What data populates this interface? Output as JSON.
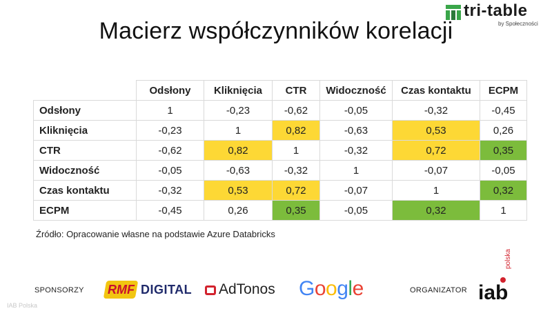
{
  "title": "Macierz współczynników korelacji",
  "logo": {
    "name": "tri-table",
    "sub": "by Społeczności"
  },
  "matrix": {
    "columns": [
      "Odsłony",
      "Kliknięcia",
      "CTR",
      "Widoczność",
      "Czas kontaktu",
      "ECPM"
    ],
    "rows": [
      {
        "label": "Odsłony",
        "values": [
          "1",
          "-0,23",
          "-0,62",
          "-0,05",
          "-0,32",
          "-0,45"
        ],
        "highlight": [
          "",
          "",
          "",
          "",
          "",
          ""
        ]
      },
      {
        "label": "Kliknięcia",
        "values": [
          "-0,23",
          "1",
          "0,82",
          "-0,63",
          "0,53",
          "0,26"
        ],
        "highlight": [
          "",
          "",
          "yellow",
          "",
          "yellow",
          ""
        ]
      },
      {
        "label": "CTR",
        "values": [
          "-0,62",
          "0,82",
          "1",
          "-0,32",
          "0,72",
          "0,35"
        ],
        "highlight": [
          "",
          "yellow",
          "",
          "",
          "yellow",
          "green"
        ]
      },
      {
        "label": "Widoczność",
        "values": [
          "-0,05",
          "-0,63",
          "-0,32",
          "1",
          "-0,07",
          "-0,05"
        ],
        "highlight": [
          "",
          "",
          "",
          "",
          "",
          ""
        ]
      },
      {
        "label": "Czas kontaktu",
        "values": [
          "-0,32",
          "0,53",
          "0,72",
          "-0,07",
          "1",
          "0,32"
        ],
        "highlight": [
          "",
          "yellow",
          "yellow",
          "",
          "",
          "green"
        ]
      },
      {
        "label": "ECPM",
        "values": [
          "-0,45",
          "0,26",
          "0,35",
          "-0,05",
          "0,32",
          "1"
        ],
        "highlight": [
          "",
          "",
          "green",
          "",
          "green",
          ""
        ]
      }
    ],
    "colors": {
      "yellow": "#fdd835",
      "green": "#7cbc3c"
    }
  },
  "source": "Źródło: Opracowanie własne na podstawie Azure Databricks",
  "footer": {
    "sponsors_label": "SPONSORZY",
    "sponsors": [
      {
        "name": "RMF",
        "suffix": "DIGITAL"
      },
      {
        "name": "AdTonos"
      },
      {
        "name": "Google"
      }
    ],
    "organizer_label": "ORGANIZATOR",
    "organizer": {
      "name": "iab",
      "suffix": "polska"
    }
  },
  "watermark": "IAB Polska"
}
